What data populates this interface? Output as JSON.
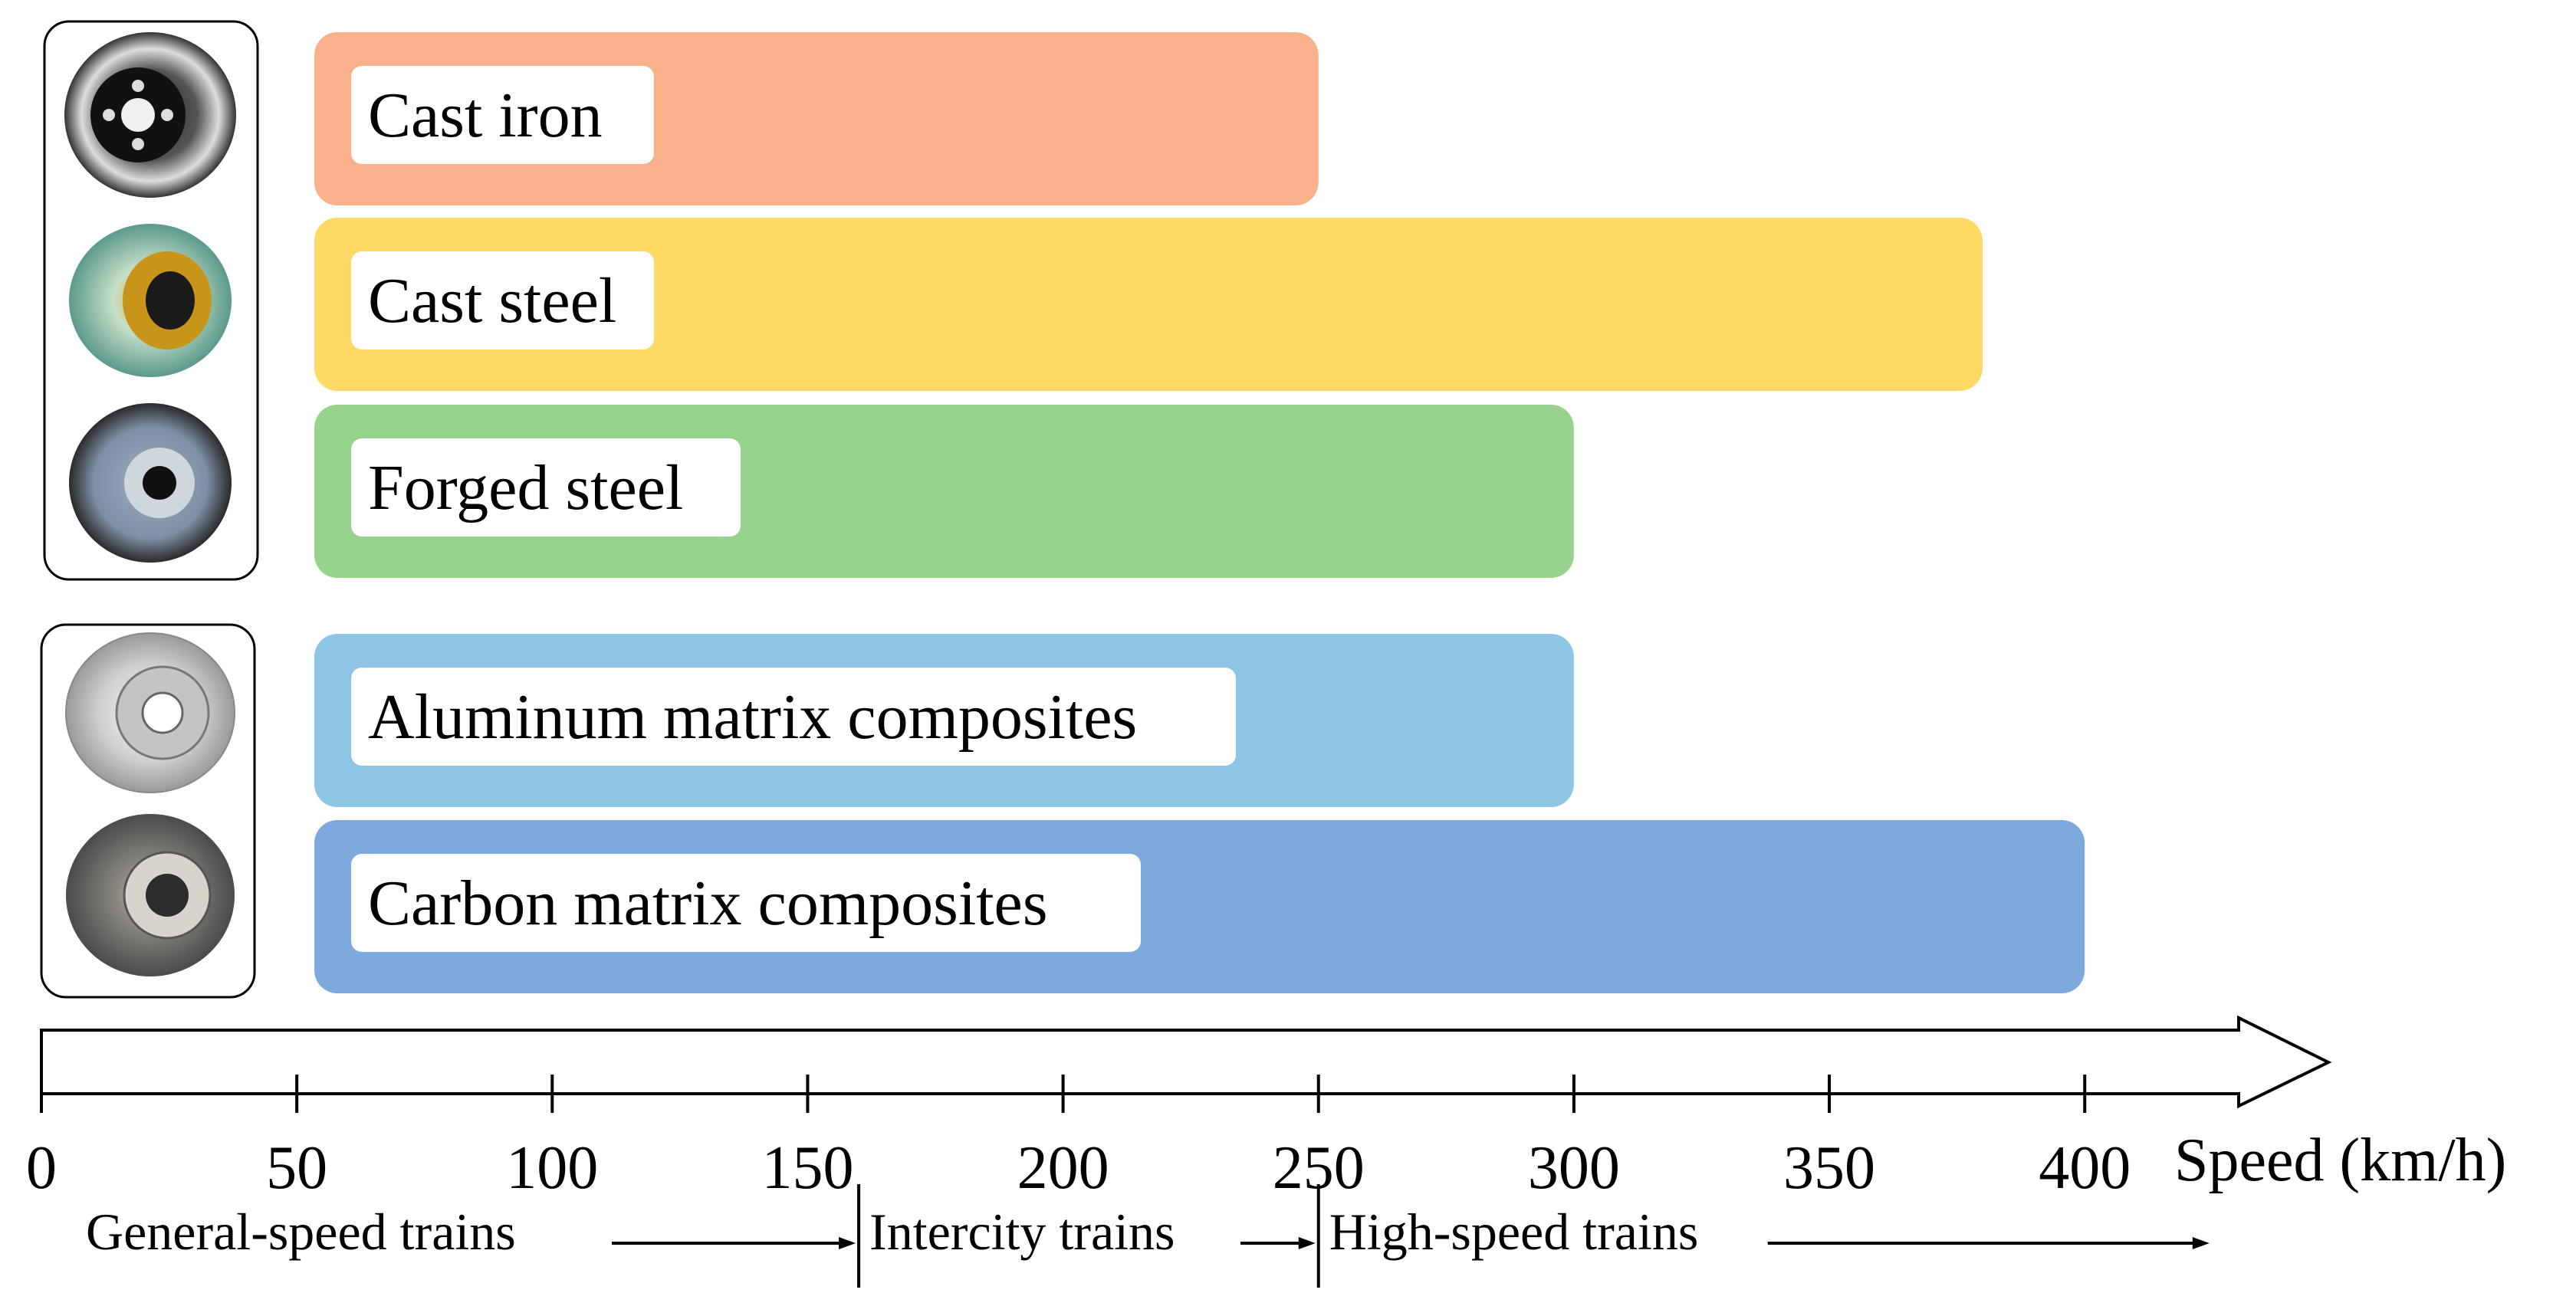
{
  "chart_data": {
    "type": "bar",
    "orientation": "horizontal",
    "categories": [
      "Cast iron",
      "Cast steel",
      "Forged steel",
      "Aluminum matrix composites",
      "Carbon matrix composites"
    ],
    "values": [
      250,
      380,
      300,
      300,
      400
    ],
    "colors": [
      "#f9b189",
      "#ffd966",
      "#97d38c",
      "#8ec4e6",
      "#7ea9dc"
    ],
    "groups": [
      {
        "members": [
          "Cast iron",
          "Cast steel",
          "Forged steel"
        ],
        "icons": [
          "cast-iron-brake-disc-icon",
          "cast-steel-brake-disc-icon",
          "forged-steel-brake-disc-icon"
        ]
      },
      {
        "members": [
          "Aluminum matrix composites",
          "Carbon matrix composites"
        ],
        "icons": [
          "aluminum-composite-brake-disc-icon",
          "carbon-composite-brake-disc-icon"
        ]
      }
    ],
    "x_axis": {
      "ticks": [
        0,
        50,
        100,
        150,
        200,
        250,
        300,
        350,
        400
      ],
      "label": "Speed (km/h)",
      "range": [
        0,
        450
      ]
    },
    "speed_ranges": [
      {
        "label": "General-speed trains",
        "from": 0,
        "to": 160
      },
      {
        "label": "Intercity trains",
        "from": 160,
        "to": 250
      },
      {
        "label": "High-speed trains",
        "from": 250,
        "to": 425
      }
    ]
  }
}
